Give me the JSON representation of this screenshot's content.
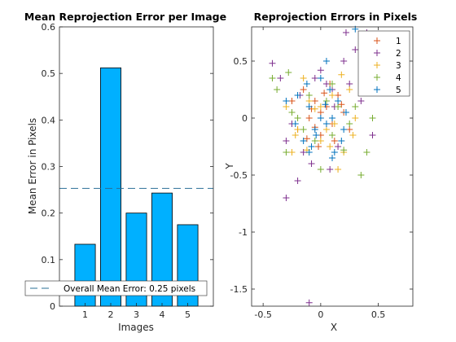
{
  "chart_data": [
    {
      "type": "bar",
      "title": "Mean Reprojection Error per Image",
      "xlabel": "Images",
      "ylabel": "Mean Error in Pixels",
      "categories": [
        "1",
        "2",
        "3",
        "4",
        "5"
      ],
      "values": [
        0.133,
        0.512,
        0.2,
        0.243,
        0.175
      ],
      "ylim": [
        0,
        0.6
      ],
      "yticks": [
        "0",
        "0.1",
        "0.2",
        "0.3",
        "0.4",
        "0.5",
        "0.6"
      ],
      "bar_color": "#00b0ff",
      "overall_mean": 0.253,
      "legend": {
        "label": "Overall Mean Error: 0.25 pixels",
        "location": "bottom"
      }
    },
    {
      "type": "scatter",
      "title": "Reprojection Errors in Pixels",
      "xlabel": "X",
      "ylabel": "Y",
      "xlim": [
        -0.6,
        0.8
      ],
      "ylim": [
        -1.65,
        0.8
      ],
      "xticks": [
        "-0.5",
        "0",
        "0.5"
      ],
      "yticks": [
        "-1.5",
        "-1",
        "-0.5",
        "0",
        "0.5"
      ],
      "marker": "plus",
      "legend": {
        "location": "top-right"
      },
      "series": [
        {
          "name": "1",
          "color": "#d95319",
          "points": [
            [
              -0.05,
              0.15
            ],
            [
              0.05,
              0.1
            ],
            [
              0.1,
              -0.05
            ],
            [
              -0.1,
              0.0
            ],
            [
              0.0,
              -0.15
            ],
            [
              0.15,
              0.2
            ],
            [
              -0.15,
              0.25
            ],
            [
              0.2,
              0.05
            ],
            [
              -0.2,
              -0.1
            ],
            [
              0.08,
              0.3
            ],
            [
              -0.02,
              -0.25
            ],
            [
              0.12,
              -0.2
            ],
            [
              -0.08,
              0.08
            ],
            [
              0.25,
              -0.1
            ],
            [
              -0.25,
              0.15
            ],
            [
              0.03,
              0.22
            ],
            [
              -0.12,
              -0.18
            ],
            [
              0.18,
              0.12
            ],
            [
              0.0,
              0.05
            ],
            [
              -0.05,
              -0.08
            ]
          ]
        },
        {
          "name": "2",
          "color": "#7e2f8e",
          "points": [
            [
              -0.3,
              -0.7
            ],
            [
              -0.2,
              -0.55
            ],
            [
              -0.42,
              0.48
            ],
            [
              -0.35,
              0.35
            ],
            [
              0.4,
              0.75
            ],
            [
              0.45,
              -0.15
            ],
            [
              0.3,
              0.6
            ],
            [
              0.2,
              0.5
            ],
            [
              -0.1,
              -1.62
            ],
            [
              0.1,
              0.25
            ],
            [
              -0.15,
              -0.3
            ],
            [
              -0.05,
              0.35
            ],
            [
              0.15,
              -0.25
            ],
            [
              0.05,
              0.3
            ],
            [
              -0.25,
              -0.05
            ],
            [
              0.25,
              0.3
            ],
            [
              0.0,
              0.42
            ],
            [
              -0.08,
              -0.4
            ],
            [
              0.12,
              0.1
            ],
            [
              -0.18,
              0.2
            ],
            [
              0.08,
              -0.45
            ],
            [
              0.22,
              0.75
            ],
            [
              -0.3,
              -0.2
            ],
            [
              0.35,
              0.15
            ]
          ]
        },
        {
          "name": "3",
          "color": "#edb120",
          "points": [
            [
              -0.25,
              -0.3
            ],
            [
              0.15,
              -0.45
            ],
            [
              0.3,
              0.0
            ],
            [
              -0.3,
              0.1
            ],
            [
              0.0,
              -0.2
            ],
            [
              0.1,
              0.2
            ],
            [
              -0.1,
              0.15
            ],
            [
              0.2,
              -0.3
            ],
            [
              -0.2,
              -0.1
            ],
            [
              0.05,
              -0.1
            ],
            [
              0.25,
              0.25
            ],
            [
              -0.15,
              0.35
            ],
            [
              0.12,
              -0.05
            ],
            [
              -0.05,
              0.08
            ],
            [
              0.18,
              0.38
            ],
            [
              -0.22,
              -0.15
            ],
            [
              0.0,
              0.1
            ],
            [
              0.08,
              -0.25
            ],
            [
              -0.12,
              -0.28
            ],
            [
              0.28,
              -0.15
            ]
          ]
        },
        {
          "name": "4",
          "color": "#77ac30",
          "points": [
            [
              0.4,
              -0.3
            ],
            [
              0.35,
              -0.5
            ],
            [
              0.45,
              0.0
            ],
            [
              -0.38,
              0.25
            ],
            [
              -0.42,
              0.35
            ],
            [
              0.2,
              -0.28
            ],
            [
              -0.3,
              -0.3
            ],
            [
              0.0,
              -0.45
            ],
            [
              -0.2,
              0.0
            ],
            [
              0.3,
              0.1
            ],
            [
              0.1,
              -0.15
            ],
            [
              -0.1,
              0.2
            ],
            [
              0.15,
              0.1
            ],
            [
              -0.15,
              -0.1
            ],
            [
              0.05,
              0.15
            ],
            [
              -0.28,
              0.4
            ],
            [
              0.25,
              -0.05
            ],
            [
              -0.05,
              -0.2
            ],
            [
              0.1,
              0.3
            ],
            [
              -0.25,
              0.05
            ]
          ]
        },
        {
          "name": "5",
          "color": "#0072bd",
          "points": [
            [
              0.3,
              0.78
            ],
            [
              0.0,
              0.35
            ],
            [
              -0.1,
              0.1
            ],
            [
              0.1,
              0.0
            ],
            [
              0.05,
              -0.05
            ],
            [
              -0.05,
              -0.1
            ],
            [
              0.15,
              0.15
            ],
            [
              -0.15,
              -0.2
            ],
            [
              0.2,
              -0.1
            ],
            [
              -0.2,
              0.2
            ],
            [
              0.08,
              0.25
            ],
            [
              -0.08,
              -0.25
            ],
            [
              0.12,
              -0.3
            ],
            [
              -0.12,
              0.3
            ],
            [
              0.0,
              0.0
            ],
            [
              0.22,
              0.05
            ],
            [
              -0.22,
              -0.05
            ],
            [
              0.04,
              0.12
            ],
            [
              -0.04,
              -0.15
            ],
            [
              0.18,
              -0.2
            ],
            [
              0.1,
              -0.35
            ],
            [
              -0.3,
              0.15
            ],
            [
              0.05,
              0.5
            ],
            [
              -0.1,
              -0.3
            ]
          ]
        }
      ]
    }
  ]
}
